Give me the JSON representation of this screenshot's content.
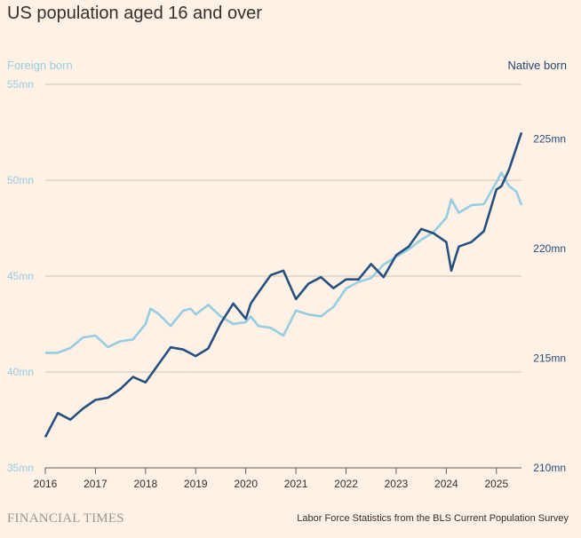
{
  "title": "US population aged 16 and over",
  "brand": "FINANCIAL TIMES",
  "source": "Labor Force Statistics from the BLS Current Population Survey",
  "colors": {
    "foreign": "#96cde0",
    "native": "#26507e",
    "grid": "#cec2b7",
    "background": "#fff1e5"
  },
  "chart_data": {
    "type": "line",
    "title": "US population aged 16 and over",
    "xlim": [
      2016,
      2025.5
    ],
    "x_ticks": [
      "2016",
      "2017",
      "2018",
      "2019",
      "2020",
      "2021",
      "2022",
      "2023",
      "2024",
      "2025"
    ],
    "left_axis": {
      "label": "Foreign born",
      "ylim": [
        35,
        55
      ],
      "ticks": [
        {
          "v": 35,
          "t": "35mn"
        },
        {
          "v": 40,
          "t": "40mn"
        },
        {
          "v": 45,
          "t": "45mn"
        },
        {
          "v": 50,
          "t": "50mn"
        },
        {
          "v": 55,
          "t": "55mn"
        }
      ]
    },
    "right_axis": {
      "label": "Native born",
      "ylim": [
        210,
        227.5
      ],
      "ticks": [
        {
          "v": 210,
          "t": "210mn"
        },
        {
          "v": 215,
          "t": "215mn"
        },
        {
          "v": 220,
          "t": "220mn"
        },
        {
          "v": 225,
          "t": "225mn"
        }
      ]
    },
    "series": [
      {
        "name": "Foreign born",
        "axis": "left",
        "x": [
          2016,
          2016.25,
          2016.5,
          2016.75,
          2017,
          2017.25,
          2017.5,
          2017.75,
          2018,
          2018.1,
          2018.25,
          2018.5,
          2018.75,
          2018.9,
          2019,
          2019.25,
          2019.5,
          2019.75,
          2020,
          2020.1,
          2020.25,
          2020.5,
          2020.75,
          2021,
          2021.25,
          2021.5,
          2021.75,
          2022,
          2022.25,
          2022.5,
          2022.75,
          2023,
          2023.25,
          2023.5,
          2023.75,
          2024,
          2024.1,
          2024.25,
          2024.5,
          2024.75,
          2025,
          2025.1,
          2025.25,
          2025.4,
          2025.5
        ],
        "y": [
          41.0,
          41.0,
          41.25,
          41.8,
          41.9,
          41.3,
          41.6,
          41.7,
          42.5,
          43.3,
          43.05,
          42.4,
          43.2,
          43.3,
          43.0,
          43.5,
          42.9,
          42.5,
          42.6,
          42.9,
          42.4,
          42.3,
          41.9,
          43.2,
          43.0,
          42.9,
          43.4,
          44.35,
          44.7,
          44.9,
          45.6,
          46.0,
          46.4,
          46.9,
          47.3,
          48.05,
          49.0,
          48.3,
          48.7,
          48.75,
          49.9,
          50.4,
          49.7,
          49.4,
          48.7
        ]
      },
      {
        "name": "Native born",
        "axis": "right",
        "x": [
          2016,
          2016.25,
          2016.5,
          2016.75,
          2017,
          2017.25,
          2017.5,
          2017.75,
          2018,
          2018.25,
          2018.5,
          2018.75,
          2019,
          2019.25,
          2019.5,
          2019.75,
          2020,
          2020.1,
          2020.25,
          2020.5,
          2020.75,
          2021,
          2021.25,
          2021.5,
          2021.75,
          2022,
          2022.25,
          2022.5,
          2022.75,
          2023,
          2023.25,
          2023.5,
          2023.75,
          2024,
          2024.1,
          2024.25,
          2024.5,
          2024.75,
          2025,
          2025.1,
          2025.25,
          2025.5
        ],
        "y": [
          211.4,
          212.5,
          212.2,
          212.7,
          213.1,
          213.2,
          213.6,
          214.15,
          213.9,
          214.7,
          215.5,
          215.4,
          215.1,
          215.45,
          216.6,
          217.5,
          216.8,
          217.5,
          218.0,
          218.8,
          219.0,
          217.7,
          218.4,
          218.7,
          218.2,
          218.6,
          218.6,
          219.3,
          218.7,
          219.7,
          220.1,
          220.9,
          220.7,
          220.3,
          219.0,
          220.1,
          220.3,
          220.8,
          222.7,
          222.85,
          223.6,
          225.3
        ]
      }
    ]
  }
}
